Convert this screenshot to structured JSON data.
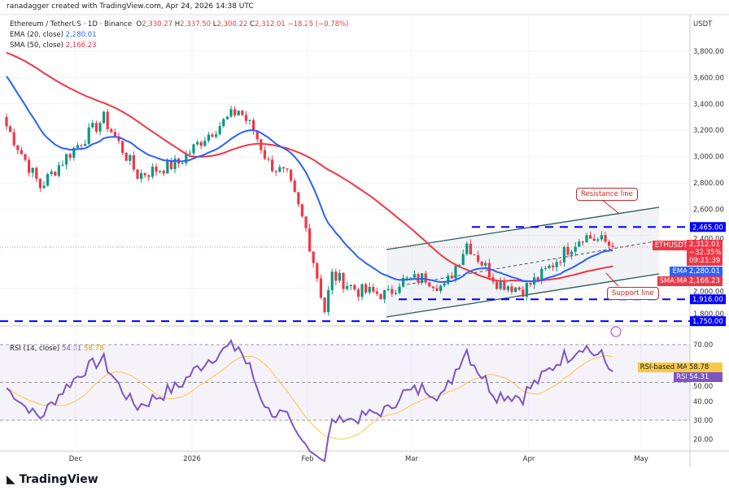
{
  "credit": "ranadagger created with TradingView.com, Apr 24, 2026 14:38 UTC",
  "legend": {
    "symbol": "Ethereum / TetherUS · 1D · Binance",
    "o_label": "O",
    "o": "2,330.27",
    "h_label": "H",
    "h": "2,337.50",
    "l_label": "L",
    "l": "2,300.22",
    "c_label": "C",
    "c": "2,312.01",
    "change": "−18.25 (−0.78%)",
    "ema": "EMA (20, close)",
    "ema_val": "2,280.01",
    "sma": "SMA (50, close)",
    "sma_val": "2,166.23"
  },
  "rsi_legend": {
    "label": "RSI (14, close)",
    "rsi": "54.31",
    "ma": "58.78"
  },
  "currency": "USDT",
  "price_ticks": [
    "3,800.00",
    "3,600.00",
    "3,400.00",
    "3,200.00",
    "3,000.00",
    "2,800.00",
    "2,600.00",
    "2,400.00",
    "2,000.00",
    "1,800.00"
  ],
  "price_tick_values": [
    3800,
    3600,
    3400,
    3200,
    3000,
    2800,
    2600,
    2400,
    2000,
    1800
  ],
  "levels": [
    {
      "value": 2465,
      "label": "2,465.00"
    },
    {
      "value": 1916,
      "label": "1,916.00"
    },
    {
      "value": 1750,
      "label": "1,750.00"
    }
  ],
  "tags": {
    "symbol": "ETHUSDT",
    "price": "2,312.01",
    "pct": "−32.35%",
    "countdown": "09:21:39",
    "ema": "EMA",
    "ema_val": "2,280.01",
    "sma": "SMA:MA",
    "sma_val": "2,166.23",
    "rsi_ma": "RSI-based MA",
    "rsi_ma_val": "58.78",
    "rsi": "RSI",
    "rsi_val": "54.31"
  },
  "rsi_ticks": [
    "70.00",
    "50.00",
    "40.00",
    "30.00",
    "20.00"
  ],
  "rsi_tick_values": [
    70,
    50,
    40,
    30,
    20
  ],
  "time_labels": [
    "Dec",
    "2026",
    "Feb",
    "Mar",
    "Apr",
    "May"
  ],
  "annotations": {
    "resistance": "Resistance line",
    "support": "Support line"
  },
  "footer": "TradingView",
  "colors": {
    "up": "#089981",
    "down": "#f23645",
    "ema": "#2962ff",
    "sma": "#f23645",
    "rsi": "#7e57c2",
    "rsi_ma": "#f7c948",
    "level": "#0000ff"
  },
  "chart_data": {
    "type": "candlestick",
    "interval": "1D",
    "start": "Nov 13",
    "anchors_day_price": [
      [
        0,
        3230
      ],
      [
        9,
        2770
      ],
      [
        16,
        3000
      ],
      [
        26,
        3290
      ],
      [
        30,
        3100
      ],
      [
        35,
        2860
      ],
      [
        46,
        2950
      ],
      [
        53,
        3150
      ],
      [
        62,
        3355
      ],
      [
        66,
        3200
      ],
      [
        70,
        2950
      ],
      [
        75,
        2850
      ],
      [
        80,
        2450
      ],
      [
        83,
        2090
      ],
      [
        85,
        1830
      ],
      [
        87,
        2100
      ],
      [
        94,
        1980
      ],
      [
        102,
        1950
      ],
      [
        105,
        2050
      ],
      [
        112,
        2080
      ],
      [
        117,
        2000
      ],
      [
        123,
        2340
      ],
      [
        131,
        2050
      ],
      [
        138,
        1990
      ],
      [
        143,
        2100
      ],
      [
        150,
        2300
      ],
      [
        154,
        2400
      ],
      [
        160,
        2350
      ],
      [
        162,
        2312
      ]
    ]
  }
}
